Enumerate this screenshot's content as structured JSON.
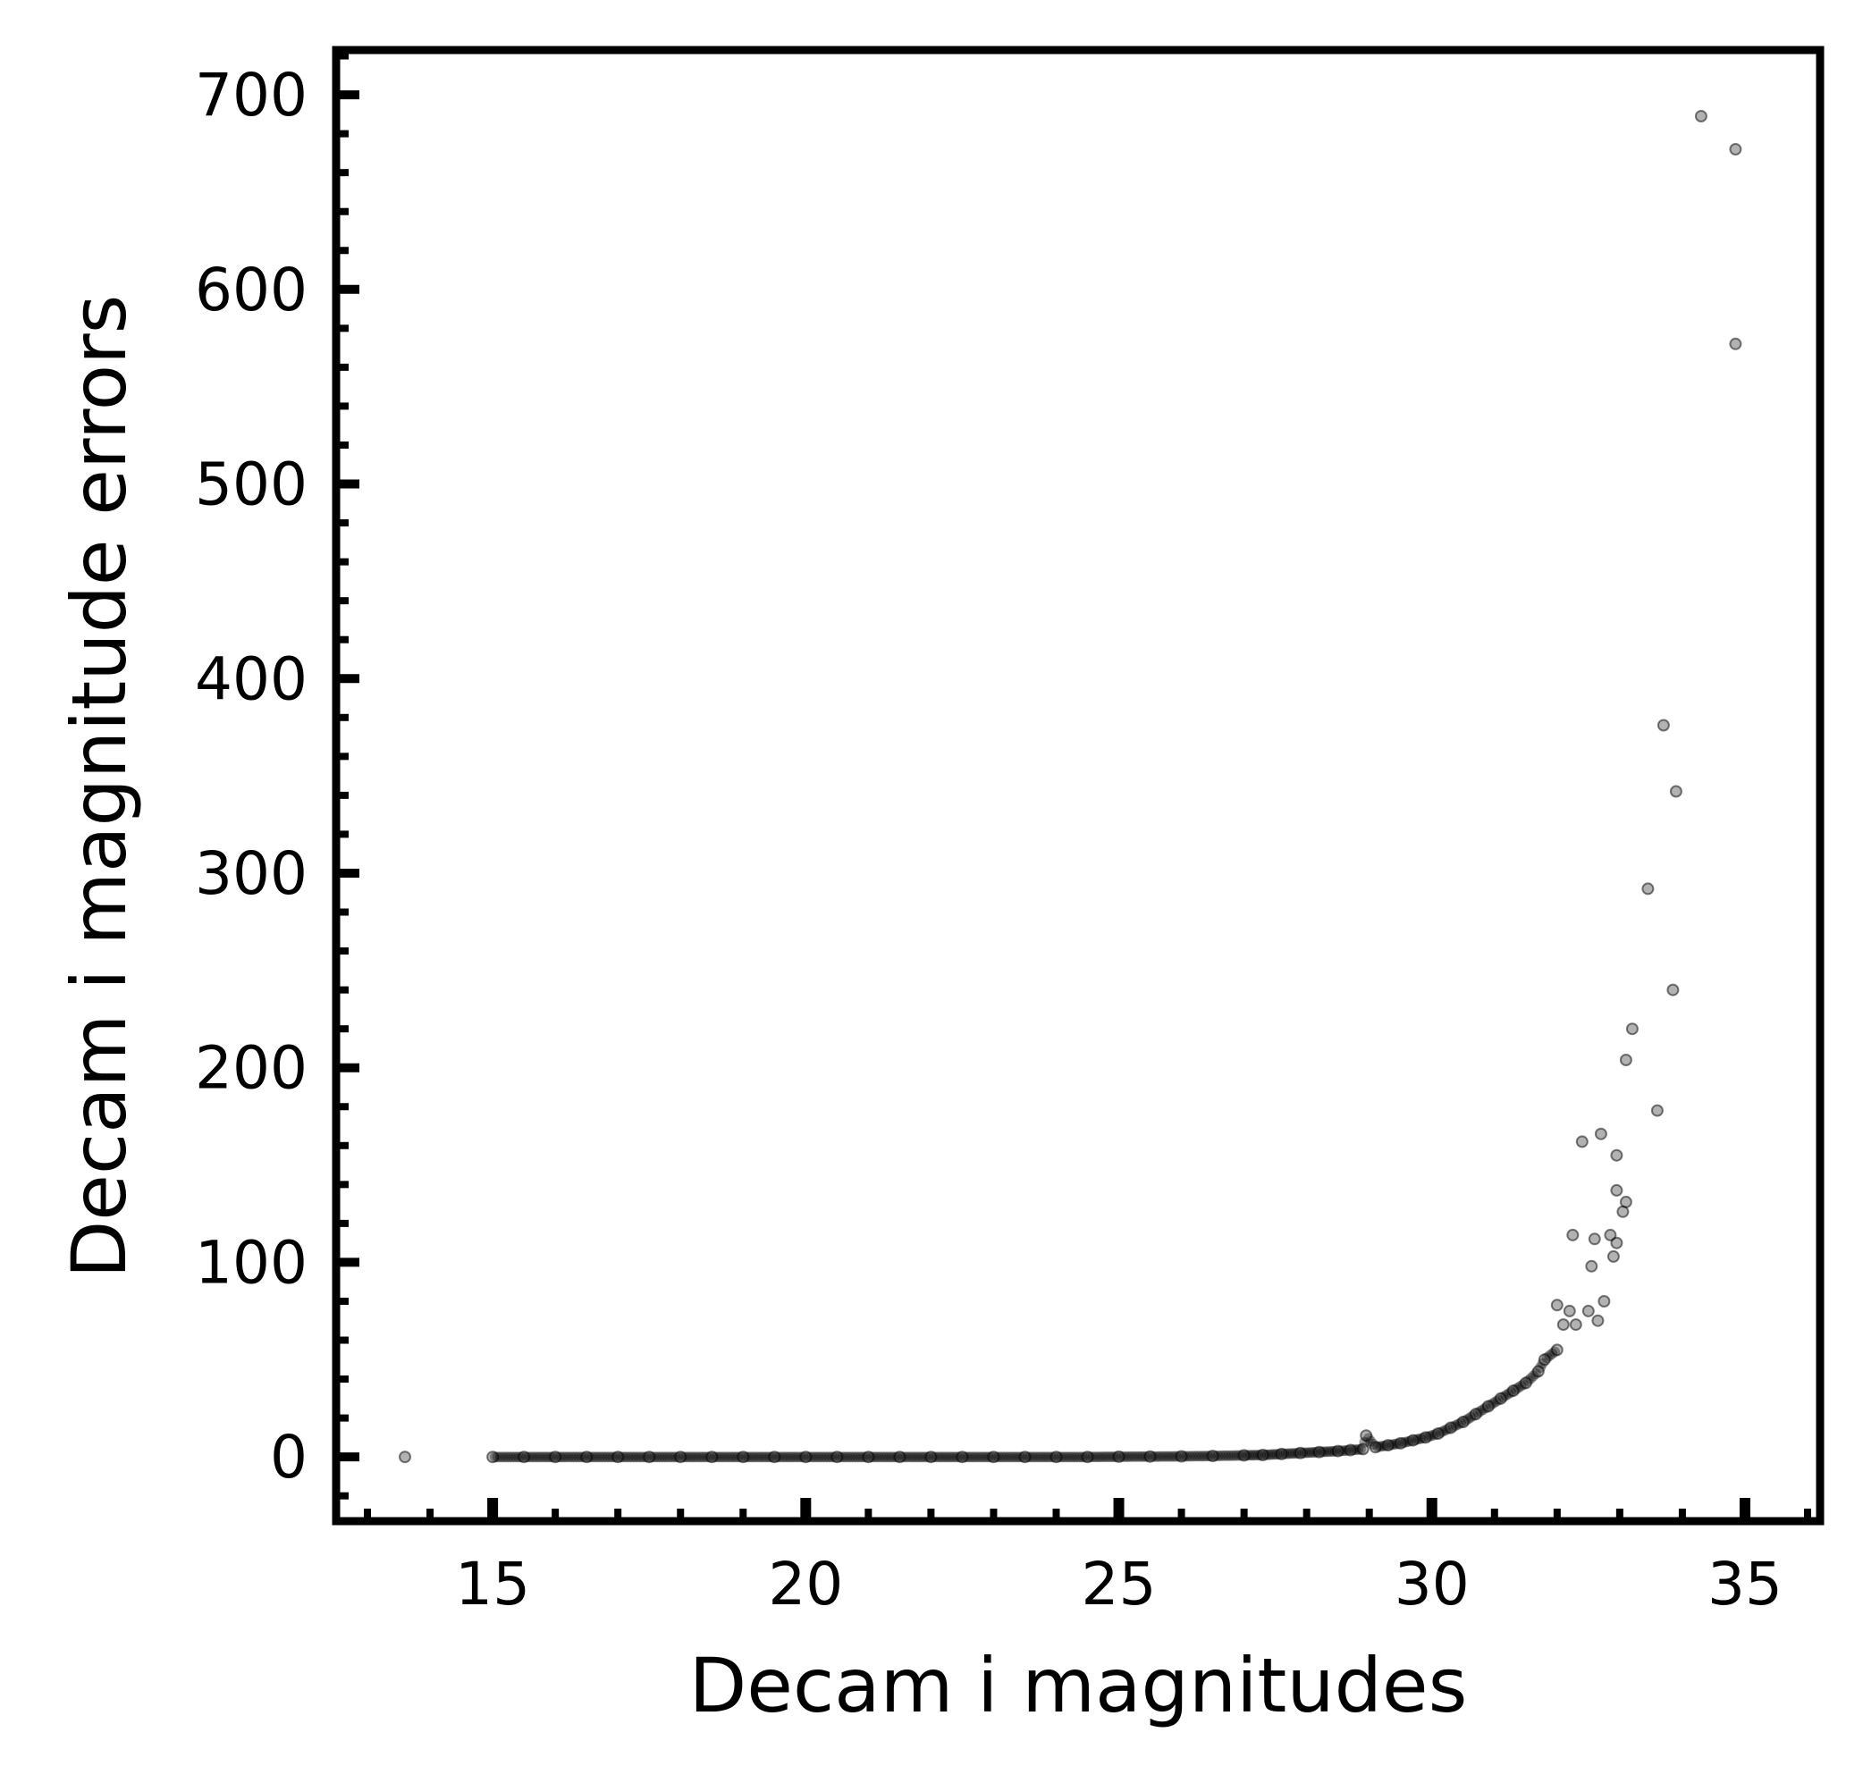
{
  "chart_data": {
    "type": "scatter",
    "xlabel": "Decam i magnitudes",
    "ylabel": "Decam i magnitude errors",
    "xlim": [
      12.5,
      36.2
    ],
    "ylim": [
      -33,
      723
    ],
    "x_ticks": [
      15,
      20,
      25,
      30,
      35
    ],
    "x_tick_labels": [
      "15",
      "20",
      "25",
      "30",
      "35"
    ],
    "y_ticks": [
      0,
      100,
      200,
      300,
      400,
      500,
      600,
      700
    ],
    "y_tick_labels": [
      "0",
      "100",
      "200",
      "300",
      "400",
      "500",
      "600",
      "700"
    ],
    "x_minor_step": 1,
    "y_minor_step": 20,
    "grid": false,
    "legend": false,
    "marker_color": "#000000",
    "marker_opacity": 0.3,
    "points": [
      [
        13.6,
        0
      ],
      [
        15.0,
        0
      ],
      [
        15.5,
        0
      ],
      [
        16.0,
        0
      ],
      [
        16.5,
        0
      ],
      [
        17.0,
        0
      ],
      [
        17.5,
        0
      ],
      [
        18.0,
        0
      ],
      [
        18.5,
        0
      ],
      [
        19.0,
        0
      ],
      [
        19.5,
        0
      ],
      [
        20.0,
        0
      ],
      [
        20.5,
        0
      ],
      [
        21.0,
        0
      ],
      [
        21.5,
        0
      ],
      [
        22.0,
        0
      ],
      [
        22.5,
        0
      ],
      [
        23.0,
        0
      ],
      [
        23.5,
        0
      ],
      [
        24.0,
        0
      ],
      [
        24.5,
        0
      ],
      [
        25.0,
        0.1
      ],
      [
        25.5,
        0.2
      ],
      [
        26.0,
        0.3
      ],
      [
        26.5,
        0.5
      ],
      [
        27.0,
        0.8
      ],
      [
        27.3,
        1.0
      ],
      [
        27.6,
        1.5
      ],
      [
        27.9,
        2.0
      ],
      [
        28.2,
        2.5
      ],
      [
        28.5,
        3.0
      ],
      [
        28.7,
        3.5
      ],
      [
        28.9,
        4.0
      ],
      [
        28.95,
        11
      ],
      [
        29.1,
        5.0
      ],
      [
        29.3,
        6.0
      ],
      [
        29.5,
        7.0
      ],
      [
        29.7,
        8.5
      ],
      [
        29.9,
        10
      ],
      [
        30.1,
        12
      ],
      [
        30.3,
        15
      ],
      [
        30.5,
        18
      ],
      [
        30.7,
        22
      ],
      [
        30.9,
        26
      ],
      [
        31.1,
        30
      ],
      [
        31.3,
        34
      ],
      [
        31.5,
        38
      ],
      [
        31.7,
        44
      ],
      [
        31.8,
        50
      ],
      [
        32.0,
        55
      ],
      [
        32.0,
        78
      ],
      [
        32.1,
        68
      ],
      [
        32.2,
        75
      ],
      [
        32.25,
        114
      ],
      [
        32.3,
        68
      ],
      [
        32.4,
        162
      ],
      [
        32.5,
        75
      ],
      [
        32.55,
        98
      ],
      [
        32.6,
        112
      ],
      [
        32.65,
        70
      ],
      [
        32.7,
        166
      ],
      [
        32.75,
        80
      ],
      [
        32.85,
        114
      ],
      [
        32.9,
        103
      ],
      [
        32.95,
        110
      ],
      [
        32.95,
        137
      ],
      [
        32.95,
        155
      ],
      [
        33.05,
        126
      ],
      [
        33.1,
        131
      ],
      [
        33.1,
        204
      ],
      [
        33.2,
        220
      ],
      [
        33.45,
        292
      ],
      [
        33.6,
        178
      ],
      [
        33.7,
        376
      ],
      [
        33.85,
        240
      ],
      [
        33.9,
        342
      ],
      [
        34.3,
        689
      ],
      [
        34.85,
        572
      ],
      [
        34.85,
        672
      ]
    ]
  }
}
